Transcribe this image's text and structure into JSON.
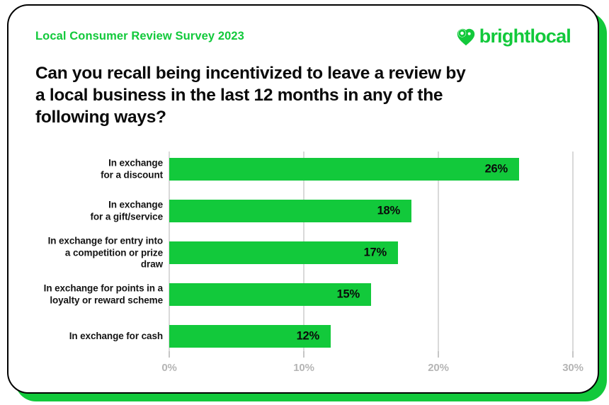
{
  "header": {
    "survey_label": "Local Consumer Review Survey 2023",
    "brand": "brightlocal",
    "title": "Can you recall being incentivized to leave a review by a local business in the last 12 months in any of the following ways?",
    "title_lines": [
      "Can you recall being incentivized to leave a review by",
      "a local business in the last 12 months in any of the",
      "following ways?"
    ]
  },
  "colors": {
    "brand_green": "#12C93B",
    "text_dark": "#0a0a0a",
    "axis_text": "#b5b5b5",
    "gridline": "#d9d9d9"
  },
  "chart_data": {
    "type": "bar",
    "orientation": "horizontal",
    "title": "Can you recall being incentivized to leave a review by a local business in the last 12 months in any of the following ways?",
    "categories": [
      "In exchange\nfor a discount",
      "In exchange\nfor a gift/service",
      "In exchange for entry into\na competition or prize\ndraw",
      "In exchange for points in a\nloyalty or reward scheme",
      "In exchange for cash"
    ],
    "values": [
      26,
      18,
      17,
      15,
      12
    ],
    "value_labels": [
      "26%",
      "18%",
      "17%",
      "15%",
      "12%"
    ],
    "xlim": [
      0,
      30
    ],
    "x_tick_values": [
      0,
      10,
      20,
      30
    ],
    "x_ticks": [
      "0%",
      "10%",
      "20%",
      "30%"
    ],
    "xlabel": "",
    "ylabel": "",
    "grid": true,
    "legend": false,
    "bar_color": "#12C93B"
  }
}
